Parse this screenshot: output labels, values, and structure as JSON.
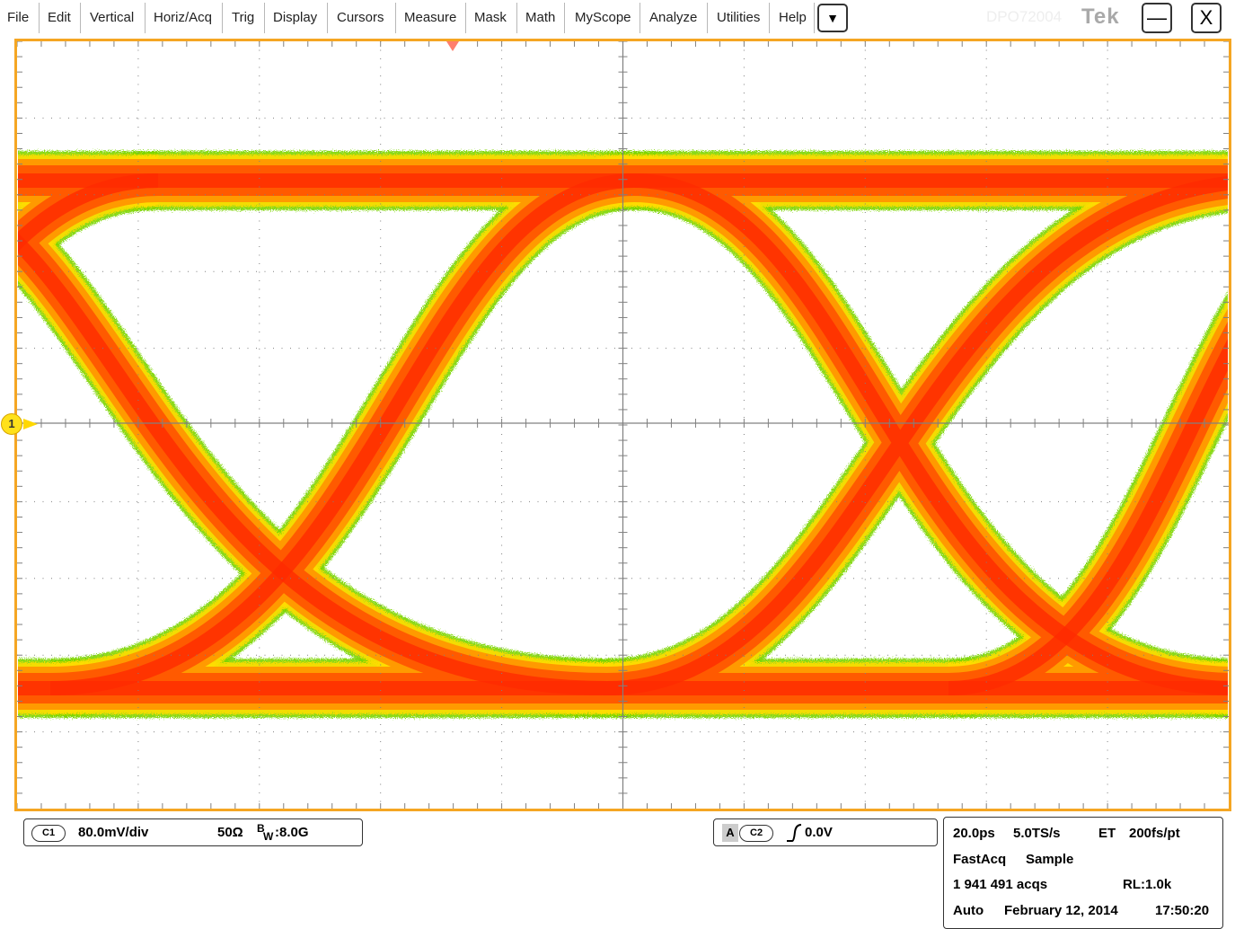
{
  "menu": {
    "items": [
      "File",
      "Edit",
      "Vertical",
      "Horiz/Acq",
      "Trig",
      "Display",
      "Cursors",
      "Measure",
      "Mask",
      "Math",
      "MyScope",
      "Analyze",
      "Utilities",
      "Help"
    ],
    "dropdown_glyph": "▼",
    "watermark": "DPO72004",
    "logo": "Tek",
    "minimize_glyph": "—",
    "close_glyph": "X"
  },
  "display": {
    "channel_marker": "1",
    "graticule_color": "#808080",
    "frame_color": "#f5a623",
    "eye_colors": [
      "#ffdd00",
      "#7cd500",
      "#ff9a00",
      "#ff5a00",
      "#ff2a00"
    ]
  },
  "vertical": {
    "channel_badge": "C1",
    "scale": "80.0mV/div",
    "impedance": "50Ω",
    "bw_prefix": "B",
    "bw_sub": "W",
    "bandwidth": ":8.0G"
  },
  "trigger": {
    "source_badge": "A",
    "channel_badge": "C2",
    "slope_icon": "rising-edge-icon",
    "level": "0.0V"
  },
  "horizontal": {
    "scale": "20.0ps",
    "sample_rate": "5.0TS/s",
    "mode": "ET",
    "resolution": "200fs/pt",
    "acq_mode": "FastAcq",
    "acq_type": "Sample",
    "acqs": "1 941 491 acqs",
    "record_length": "RL:1.0k",
    "run_mode": "Auto",
    "date": "February 12, 2014",
    "time": "17:50:20"
  }
}
